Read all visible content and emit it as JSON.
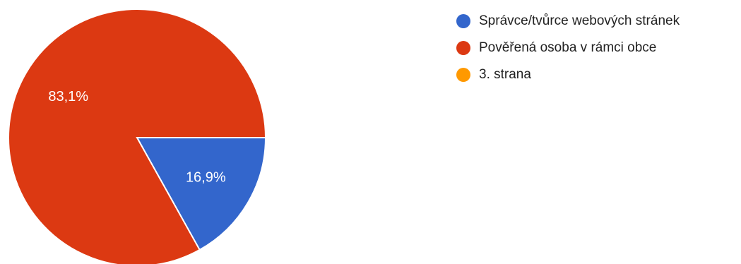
{
  "chart_data": {
    "type": "pie",
    "categories": [
      "Správce/tvůrce webových stránek",
      "Pověřená osoba v rámci obce",
      "3. strana"
    ],
    "values": [
      16.9,
      83.1,
      0
    ],
    "value_labels": [
      "16,9%",
      "83,1%",
      ""
    ],
    "colors": [
      "#3366cc",
      "#dc3912",
      "#ff9900"
    ],
    "legend_position": "right"
  }
}
